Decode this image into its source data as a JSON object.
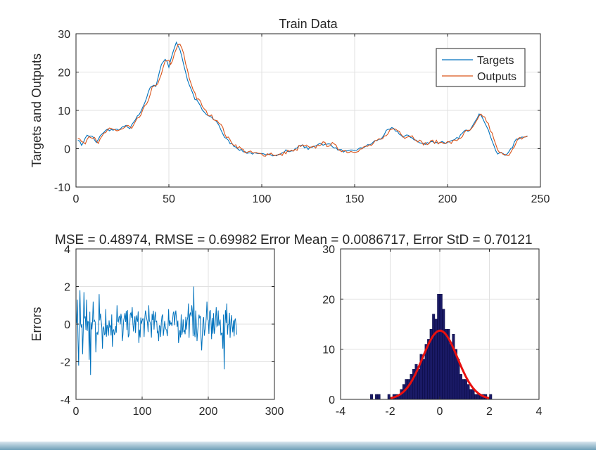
{
  "figure": {
    "panel_titles": [
      "Train Data",
      "MSE = 0.48974, RMSE = 0.69982",
      "Error Mean = 0.0086717, Error StD = 0.70121"
    ],
    "colors": {
      "targets": "#0072BD",
      "outputs": "#D95319",
      "errors": "#0072BD",
      "bars": "#1a1a66",
      "fit": "#e8100f",
      "grid": "#e1e1e1",
      "axes": "#262626"
    }
  },
  "chart_data": [
    {
      "type": "line",
      "title": "Train Data",
      "xlabel": "",
      "ylabel": "Targets and Outputs",
      "xlim": [
        0,
        250
      ],
      "ylim": [
        -10,
        30
      ],
      "xticks": [
        "0",
        "50",
        "100",
        "150",
        "200",
        "250"
      ],
      "yticks": [
        "-10",
        "0",
        "10",
        "20",
        "30"
      ],
      "grid": true,
      "legend": "top-right",
      "x_range": [
        1,
        243
      ],
      "series": [
        {
          "name": "Targets",
          "color": "#0072BD",
          "keypoints": [
            [
              1,
              2.5
            ],
            [
              3,
              1
            ],
            [
              6,
              3.5
            ],
            [
              9,
              3
            ],
            [
              11,
              1.5
            ],
            [
              14,
              4
            ],
            [
              17,
              5
            ],
            [
              21,
              4.8
            ],
            [
              24,
              5.2
            ],
            [
              27,
              6
            ],
            [
              29,
              5
            ],
            [
              31,
              7
            ],
            [
              34,
              9
            ],
            [
              37,
              12
            ],
            [
              40,
              16
            ],
            [
              43,
              16.5
            ],
            [
              46,
              22
            ],
            [
              48,
              23.5
            ],
            [
              50,
              21.5
            ],
            [
              52,
              25
            ],
            [
              54,
              27.5
            ],
            [
              56,
              26
            ],
            [
              58,
              22
            ],
            [
              60,
              18
            ],
            [
              62,
              15.5
            ],
            [
              64,
              13
            ],
            [
              66,
              12
            ],
            [
              68,
              10
            ],
            [
              70,
              9
            ],
            [
              73,
              8
            ],
            [
              76,
              7
            ],
            [
              78,
              5
            ],
            [
              80,
              3
            ],
            [
              83,
              1.5
            ],
            [
              86,
              0.5
            ],
            [
              89,
              -0.5
            ],
            [
              92,
              -1
            ],
            [
              95,
              -1.2
            ],
            [
              98,
              -1.5
            ],
            [
              101,
              -1.5
            ],
            [
              104,
              -1.2
            ],
            [
              107,
              -1.8
            ],
            [
              110,
              -1.5
            ],
            [
              113,
              -0.5
            ],
            [
              116,
              -0.8
            ],
            [
              119,
              0.5
            ],
            [
              122,
              0.8
            ],
            [
              125,
              0
            ],
            [
              128,
              0.5
            ],
            [
              131,
              1.5
            ],
            [
              134,
              1
            ],
            [
              137,
              1.2
            ],
            [
              140,
              0
            ],
            [
              143,
              -0.5
            ],
            [
              146,
              -0.8
            ],
            [
              149,
              -0.5
            ],
            [
              152,
              -0.2
            ],
            [
              155,
              0.5
            ],
            [
              158,
              1
            ],
            [
              161,
              2
            ],
            [
              164,
              2.5
            ],
            [
              167,
              4.5
            ],
            [
              170,
              5.3
            ],
            [
              173,
              4.5
            ],
            [
              176,
              3
            ],
            [
              179,
              3.5
            ],
            [
              182,
              2.5
            ],
            [
              185,
              1.5
            ],
            [
              188,
              1.2
            ],
            [
              191,
              2
            ],
            [
              194,
              1.5
            ],
            [
              197,
              1.8
            ],
            [
              200,
              1.5
            ],
            [
              203,
              2
            ],
            [
              206,
              3
            ],
            [
              209,
              4.5
            ],
            [
              212,
              5
            ],
            [
              215,
              7.5
            ],
            [
              217,
              9
            ],
            [
              219,
              8
            ],
            [
              221,
              6
            ],
            [
              223,
              3.5
            ],
            [
              225,
              0.5
            ],
            [
              227,
              -1.5
            ],
            [
              229,
              -1
            ],
            [
              231,
              -1.5
            ],
            [
              233,
              -1
            ],
            [
              235,
              0.5
            ],
            [
              237,
              2.5
            ],
            [
              240,
              3
            ],
            [
              243,
              3.5
            ]
          ]
        },
        {
          "name": "Outputs",
          "color": "#D95319",
          "lag": 1.2,
          "noise": 0.5
        }
      ]
    },
    {
      "type": "line",
      "title": "MSE = 0.48974, RMSE = 0.69982",
      "xlabel": "",
      "ylabel": "Errors",
      "xlim": [
        0,
        300
      ],
      "ylim": [
        -4,
        4
      ],
      "xticks": [
        "0",
        "100",
        "200",
        "300"
      ],
      "yticks": [
        "-4",
        "-2",
        "0",
        "2",
        "4"
      ],
      "grid": true,
      "x_range": [
        1,
        243
      ],
      "series": [
        {
          "color": "#0072BD",
          "spikes": [
            [
              2,
              1.3
            ],
            [
              3,
              -0.8
            ],
            [
              4,
              -2.2
            ],
            [
              6,
              1.8
            ],
            [
              10,
              -1.6
            ],
            [
              12,
              1.7
            ],
            [
              16,
              1.3
            ],
            [
              20,
              -1.9
            ],
            [
              22,
              -2.7
            ],
            [
              26,
              1.2
            ],
            [
              30,
              -1.5
            ],
            [
              35,
              1.6
            ],
            [
              40,
              -1.3
            ],
            [
              45,
              0.8
            ],
            [
              55,
              -1.2
            ],
            [
              62,
              1.0
            ],
            [
              70,
              -0.9
            ],
            [
              85,
              0.9
            ],
            [
              95,
              -1.0
            ],
            [
              110,
              1.0
            ],
            [
              125,
              -0.9
            ],
            [
              140,
              0.8
            ],
            [
              155,
              -1.0
            ],
            [
              170,
              1.1
            ],
            [
              175,
              1.0
            ],
            [
              178,
              2.0
            ],
            [
              183,
              -0.9
            ],
            [
              190,
              -1.4
            ],
            [
              198,
              1.2
            ],
            [
              205,
              -0.8
            ],
            [
              212,
              0.9
            ],
            [
              222,
              -1.3
            ],
            [
              224,
              -2.4
            ],
            [
              228,
              1.1
            ],
            [
              232,
              0.6
            ],
            [
              238,
              0.2
            ],
            [
              241,
              0.3
            ]
          ]
        }
      ]
    },
    {
      "type": "bar",
      "title": "Error Mean = 0.0086717, Error StD = 0.70121",
      "xlabel": "",
      "ylabel": "",
      "xlim": [
        -4,
        4
      ],
      "ylim": [
        0,
        30
      ],
      "xticks": [
        "-4",
        "-2",
        "0",
        "2",
        "4"
      ],
      "yticks": [
        "0",
        "10",
        "20",
        "30"
      ],
      "grid": true,
      "bin_width": 0.1,
      "bins": [
        [
          -2.75,
          1
        ],
        [
          -2.55,
          1
        ],
        [
          -2.45,
          1
        ],
        [
          -2.05,
          1
        ],
        [
          -1.85,
          1
        ],
        [
          -1.75,
          1
        ],
        [
          -1.65,
          1
        ],
        [
          -1.55,
          2
        ],
        [
          -1.45,
          3
        ],
        [
          -1.35,
          4
        ],
        [
          -1.25,
          4
        ],
        [
          -1.15,
          5
        ],
        [
          -1.05,
          6
        ],
        [
          -0.95,
          7
        ],
        [
          -0.85,
          6
        ],
        [
          -0.75,
          9
        ],
        [
          -0.65,
          8
        ],
        [
          -0.55,
          11
        ],
        [
          -0.45,
          12
        ],
        [
          -0.35,
          14
        ],
        [
          -0.25,
          17
        ],
        [
          -0.15,
          16
        ],
        [
          -0.05,
          21
        ],
        [
          0.05,
          21
        ],
        [
          0.15,
          18
        ],
        [
          0.25,
          14
        ],
        [
          0.35,
          14
        ],
        [
          0.45,
          11
        ],
        [
          0.55,
          13
        ],
        [
          0.65,
          10
        ],
        [
          0.75,
          8
        ],
        [
          0.85,
          5
        ],
        [
          0.95,
          4
        ],
        [
          1.05,
          4
        ],
        [
          1.15,
          3
        ],
        [
          1.25,
          2
        ],
        [
          1.35,
          2
        ],
        [
          1.45,
          1
        ],
        [
          1.55,
          1
        ],
        [
          1.65,
          1
        ],
        [
          1.75,
          1
        ],
        [
          1.85,
          1
        ],
        [
          2.05,
          1
        ]
      ],
      "fit": {
        "type": "normal",
        "mean": 0.0086717,
        "std": 0.70121,
        "peak": 13.7,
        "x_range": [
          -2,
          2
        ]
      }
    }
  ]
}
